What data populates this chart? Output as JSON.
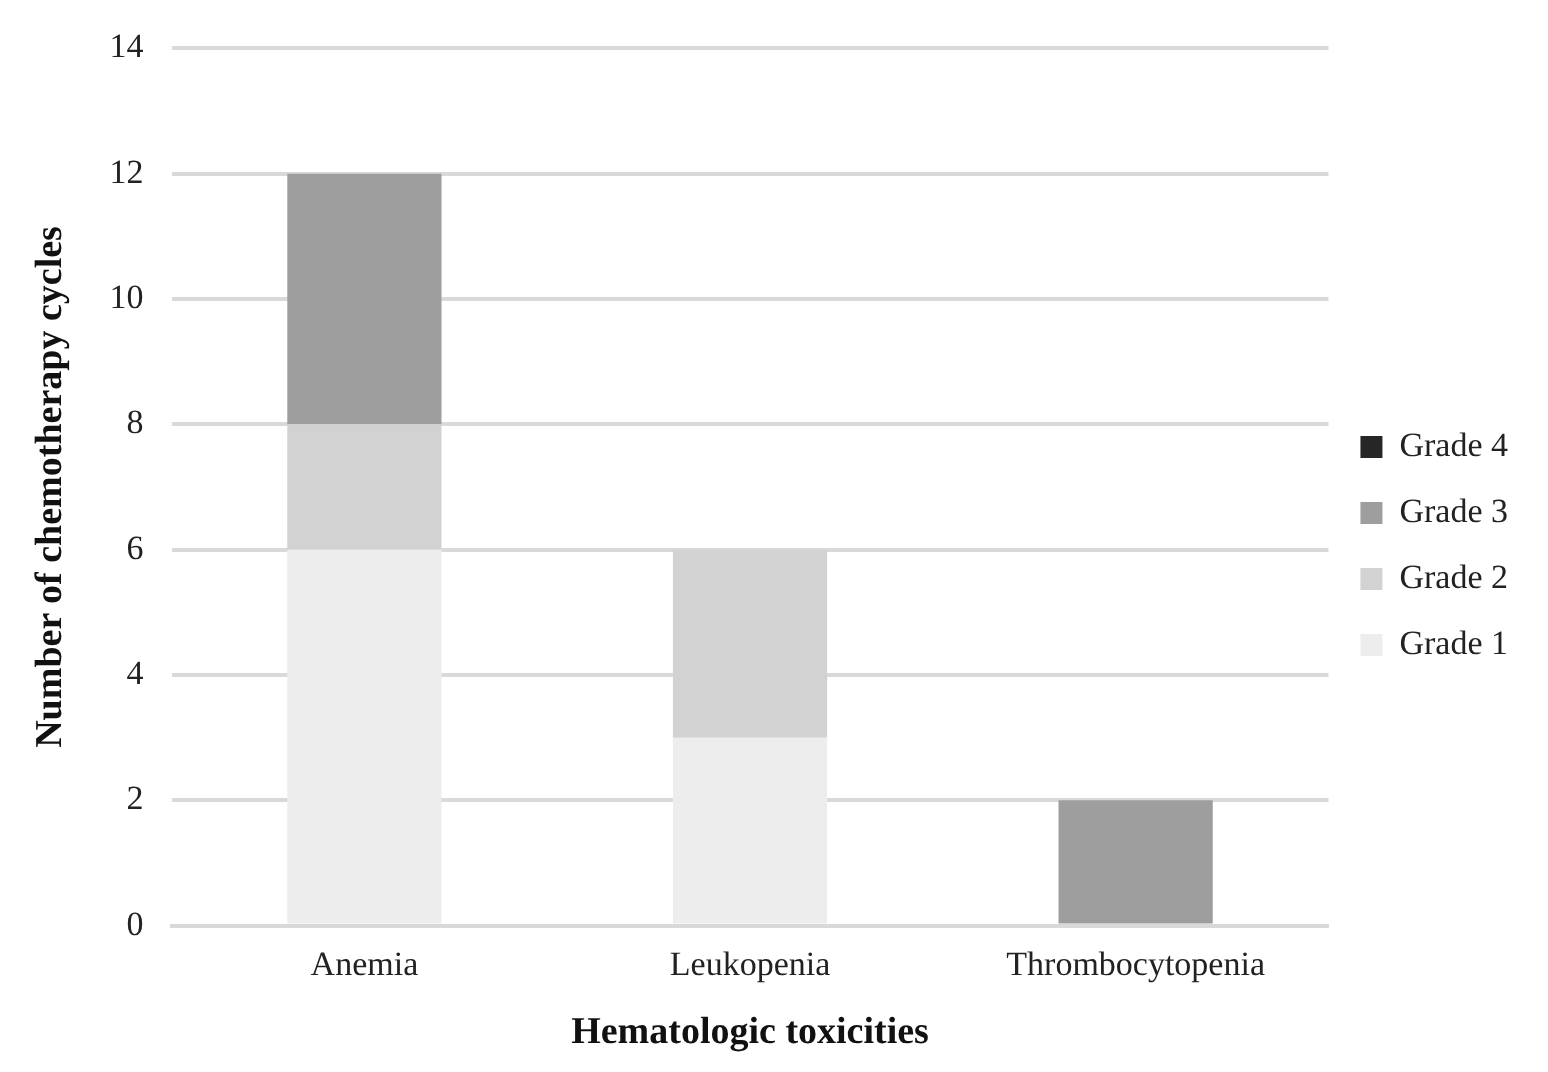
{
  "chart_data": {
    "type": "bar",
    "stacked": true,
    "xlabel": "Hematologic toxicities",
    "ylabel": "Number of chemotherapy cycles",
    "categories": [
      "Anemia",
      "Leukopenia",
      "Thrombocytopenia"
    ],
    "series": [
      {
        "name": "Grade 1",
        "color": "#ededed",
        "values": [
          6,
          3,
          0
        ]
      },
      {
        "name": "Grade 2",
        "color": "#d2d2d2",
        "values": [
          2,
          3,
          0
        ]
      },
      {
        "name": "Grade 3",
        "color": "#9e9e9e",
        "values": [
          4,
          0,
          2
        ]
      },
      {
        "name": "Grade 4",
        "color": "#262626",
        "values": [
          0,
          0,
          0
        ]
      }
    ],
    "ylim": [
      0,
      14
    ],
    "yticks": [
      0,
      2,
      4,
      6,
      8,
      10,
      12,
      14
    ],
    "grid": "y",
    "legend": "right"
  }
}
